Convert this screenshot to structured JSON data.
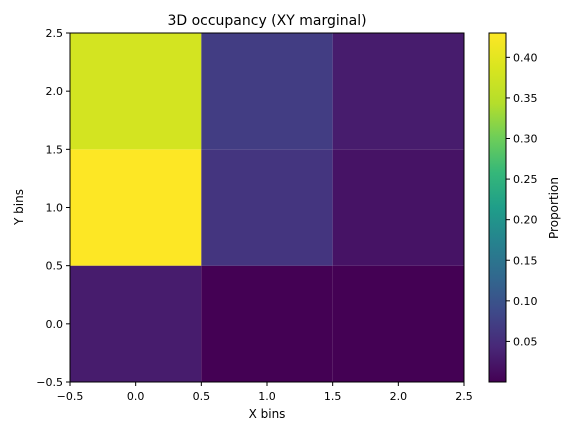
{
  "chart_data": {
    "type": "heatmap",
    "title": "3D occupancy (XY marginal)",
    "xlabel": "X bins",
    "ylabel": "Y bins",
    "x_centers": [
      0,
      1,
      2
    ],
    "y_centers": [
      0,
      1,
      2
    ],
    "xlim": [
      -0.5,
      2.5
    ],
    "ylim": [
      -0.5,
      2.5
    ],
    "xticks": [
      -0.5,
      0.0,
      0.5,
      1.0,
      1.5,
      2.0,
      2.5
    ],
    "yticks": [
      -0.5,
      0.0,
      0.5,
      1.0,
      1.5,
      2.0,
      2.5
    ],
    "xtick_labels": [
      "−0.5",
      "0.0",
      "0.5",
      "1.0",
      "1.5",
      "2.0",
      "2.5"
    ],
    "ytick_labels": [
      "−0.5",
      "0.0",
      "0.5",
      "1.0",
      "1.5",
      "2.0",
      "2.5"
    ],
    "values": [
      [
        0.03,
        0.0,
        0.0
      ],
      [
        0.43,
        0.06,
        0.02
      ],
      [
        0.38,
        0.07,
        0.03
      ]
    ],
    "colormap": "viridis",
    "colorbar": {
      "label": "Proportion",
      "vmin": 0.0,
      "vmax": 0.43,
      "ticks": [
        0.05,
        0.1,
        0.15,
        0.2,
        0.25,
        0.3,
        0.35,
        0.4
      ],
      "tick_labels": [
        "0.05",
        "0.10",
        "0.15",
        "0.20",
        "0.25",
        "0.30",
        "0.35",
        "0.40"
      ]
    },
    "grid": false
  }
}
